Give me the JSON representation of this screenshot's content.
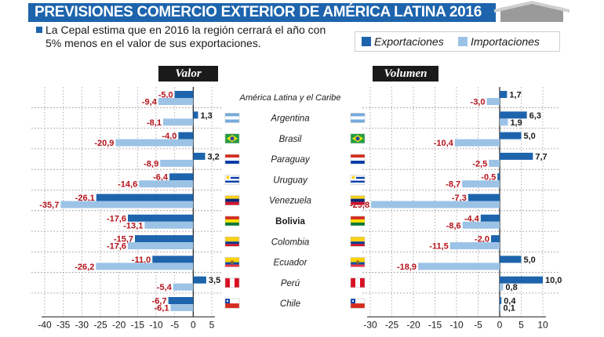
{
  "title": "PREVISIONES COMERCIO EXTERIOR DE AMÉRICA LATINA 2016",
  "note": "La Cepal estima que en 2016 la región cerrará el año con 5% menos en el valor de sus exportaciones.",
  "colors": {
    "exports": "#1d64ad",
    "imports": "#9cc3e6",
    "negative_label": "#b5121b",
    "positive_label": "#1a1a1a",
    "banner": "#1d64ad"
  },
  "chart_data": {
    "type": "bar",
    "orientation": "horizontal",
    "legend_placement": "top-right",
    "series_names": [
      "Exportaciones",
      "Importaciones"
    ],
    "categories": [
      "América Latina y el Caribe",
      "Argentina",
      "Brasil",
      "Paraguay",
      "Uruguay",
      "Venezuela",
      "Bolivia",
      "Colombia",
      "Ecuador",
      "Perú",
      "Chile"
    ],
    "highlight_category": "Bolivia",
    "panels": [
      {
        "title": "Valor",
        "xlim": [
          -40,
          5
        ],
        "ticks": [
          "-40",
          "-35",
          "-30",
          "-25",
          "-20",
          "-15",
          "-10",
          "-5",
          "0",
          "5"
        ],
        "series": [
          {
            "name": "Exportaciones",
            "values": [
              -5.0,
              1.3,
              -4.0,
              3.2,
              -6.4,
              -26.1,
              -17.6,
              -15.7,
              -11.0,
              3.5,
              -6.7
            ],
            "labels": [
              "-5,0",
              "1,3",
              "-4,0",
              "3,2",
              "-6,4",
              "-26,1",
              "-17,6",
              "-15,7",
              "-11,0",
              "3,5",
              "-6,7"
            ]
          },
          {
            "name": "Importaciones",
            "values": [
              -9.4,
              -8.1,
              -20.9,
              -8.9,
              -14.6,
              -35.7,
              -13.1,
              -17.6,
              -26.2,
              -5.4,
              -6.1
            ],
            "labels": [
              "-9,4",
              "-8,1",
              "-20,9",
              "-8,9",
              "-14,6",
              "-35,7",
              "-13,1",
              "-17,6",
              "-26,2",
              "-5,4",
              "-6,1"
            ]
          }
        ]
      },
      {
        "title": "Volumen",
        "xlim": [
          -30,
          10
        ],
        "ticks": [
          "-30",
          "-25",
          "-20",
          "-15",
          "-10",
          "-5",
          "0",
          "5",
          "10"
        ],
        "series": [
          {
            "name": "Exportaciones",
            "values": [
              1.7,
              6.3,
              5.0,
              7.7,
              -0.5,
              -7.3,
              -4.4,
              -2.0,
              5.0,
              10.0,
              0.4
            ],
            "labels": [
              "1,7",
              "6,3",
              "5,0",
              "7,7",
              "-0,5",
              "-7,3",
              "-4,4",
              "-2,0",
              "5,0",
              "10,0",
              "0,4"
            ]
          },
          {
            "name": "Importaciones",
            "values": [
              -3.0,
              1.9,
              -10.4,
              -2.5,
              -8.7,
              -29.8,
              -8.6,
              -11.5,
              -18.9,
              0.8,
              0.1
            ],
            "labels": [
              "-3,0",
              "1,9",
              "-10,4",
              "-2,5",
              "-8,7",
              "-29,8",
              "-8,6",
              "-11,5",
              "-18,9",
              "0,8",
              "0,1"
            ]
          }
        ]
      }
    ]
  }
}
